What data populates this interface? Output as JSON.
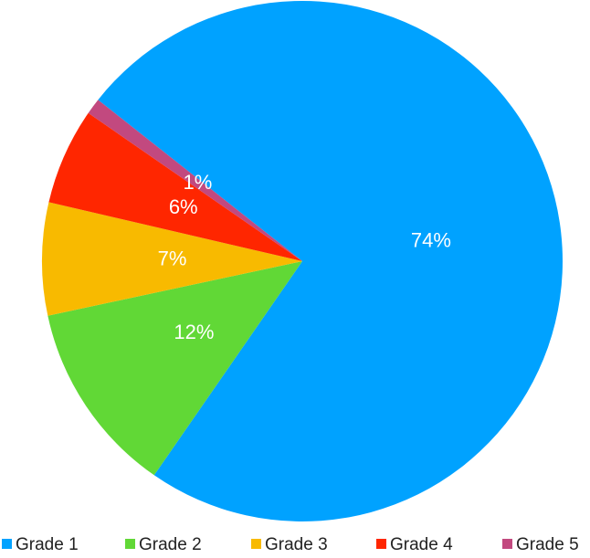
{
  "chart_data": {
    "type": "pie",
    "categories": [
      "Grade 1",
      "Grade 2",
      "Grade 3",
      "Grade 4",
      "Grade 5"
    ],
    "values": [
      74,
      12,
      7,
      6,
      1
    ],
    "value_labels": [
      "74%",
      "12%",
      "7%",
      "6%",
      "1%"
    ],
    "colors": [
      "#00a2ff",
      "#61d836",
      "#f8ba00",
      "#ff2600",
      "#c2497f"
    ],
    "legend": "bottom"
  }
}
